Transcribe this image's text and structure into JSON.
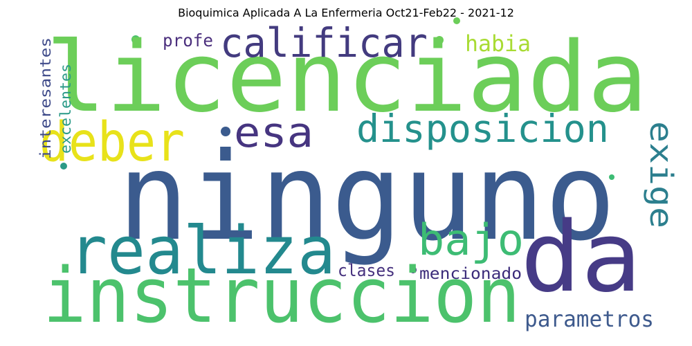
{
  "title": "Bioquimica Aplicada A La Enfermeria Oct21-Feb22 - 2021-12",
  "words": [
    {
      "text": "licenciada",
      "color": "#6cce59"
    },
    {
      "text": "ninguno",
      "color": "#3b5b8e"
    },
    {
      "text": "instruccion",
      "color": "#4cc26c"
    },
    {
      "text": "da",
      "color": "#463b86"
    },
    {
      "text": "realiza",
      "color": "#23898e"
    },
    {
      "text": "calificar",
      "color": "#433b7f"
    },
    {
      "text": "deber",
      "color": "#e8e21a"
    },
    {
      "text": "esa",
      "color": "#463580"
    },
    {
      "text": "disposicion",
      "color": "#24918c"
    },
    {
      "text": "exige",
      "color": "#2c7f8e"
    },
    {
      "text": "bajo",
      "color": "#3dbc74"
    },
    {
      "text": "parametros",
      "color": "#3e5a8d"
    },
    {
      "text": "habia",
      "color": "#a8db33"
    },
    {
      "text": "profe",
      "color": "#4b2f7d"
    },
    {
      "text": "clases",
      "color": "#46317e"
    },
    {
      "text": "mencionado",
      "color": "#3b2b7a"
    },
    {
      "text": "interesantes",
      "color": "#3f4b8a"
    },
    {
      "text": "excelentes",
      "color": "#2a9a87"
    }
  ],
  "dots": [
    {
      "color": "#4cc26c"
    },
    {
      "color": "#6cce59"
    },
    {
      "color": "#3b5b8e"
    },
    {
      "color": "#46317e"
    },
    {
      "color": "#2a9a87"
    },
    {
      "color": "#6cce59"
    },
    {
      "color": "#3dbc74"
    }
  ]
}
